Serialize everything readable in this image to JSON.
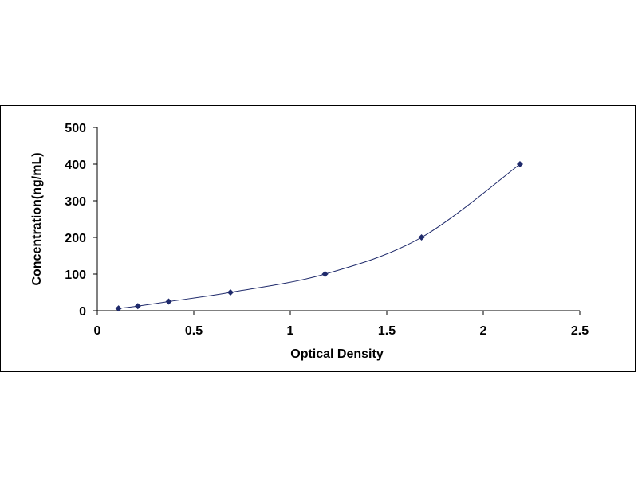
{
  "chart_data": {
    "type": "scatter",
    "title": "",
    "xlabel": "Optical Density",
    "ylabel": "Concentration(ng/mL)",
    "xlim": [
      0,
      2.5
    ],
    "ylim": [
      0,
      500
    ],
    "xticks": [
      0,
      0.5,
      1,
      1.5,
      2,
      2.5
    ],
    "xtick_labels": [
      "0",
      "0.5",
      "1",
      "1.5",
      "2",
      "2.5"
    ],
    "yticks": [
      0,
      100,
      200,
      300,
      400,
      500
    ],
    "ytick_labels": [
      "0",
      "100",
      "200",
      "300",
      "400",
      "500"
    ],
    "grid": false,
    "legend": "none",
    "trendline": "smooth curve through points",
    "marker": "diamond",
    "color": "#1f2a6b",
    "series": [
      {
        "x": [
          0.11,
          0.21,
          0.37,
          0.69,
          1.18,
          1.68,
          2.19
        ],
        "y": [
          6.25,
          12.5,
          25,
          50,
          100,
          200,
          400
        ]
      }
    ]
  }
}
